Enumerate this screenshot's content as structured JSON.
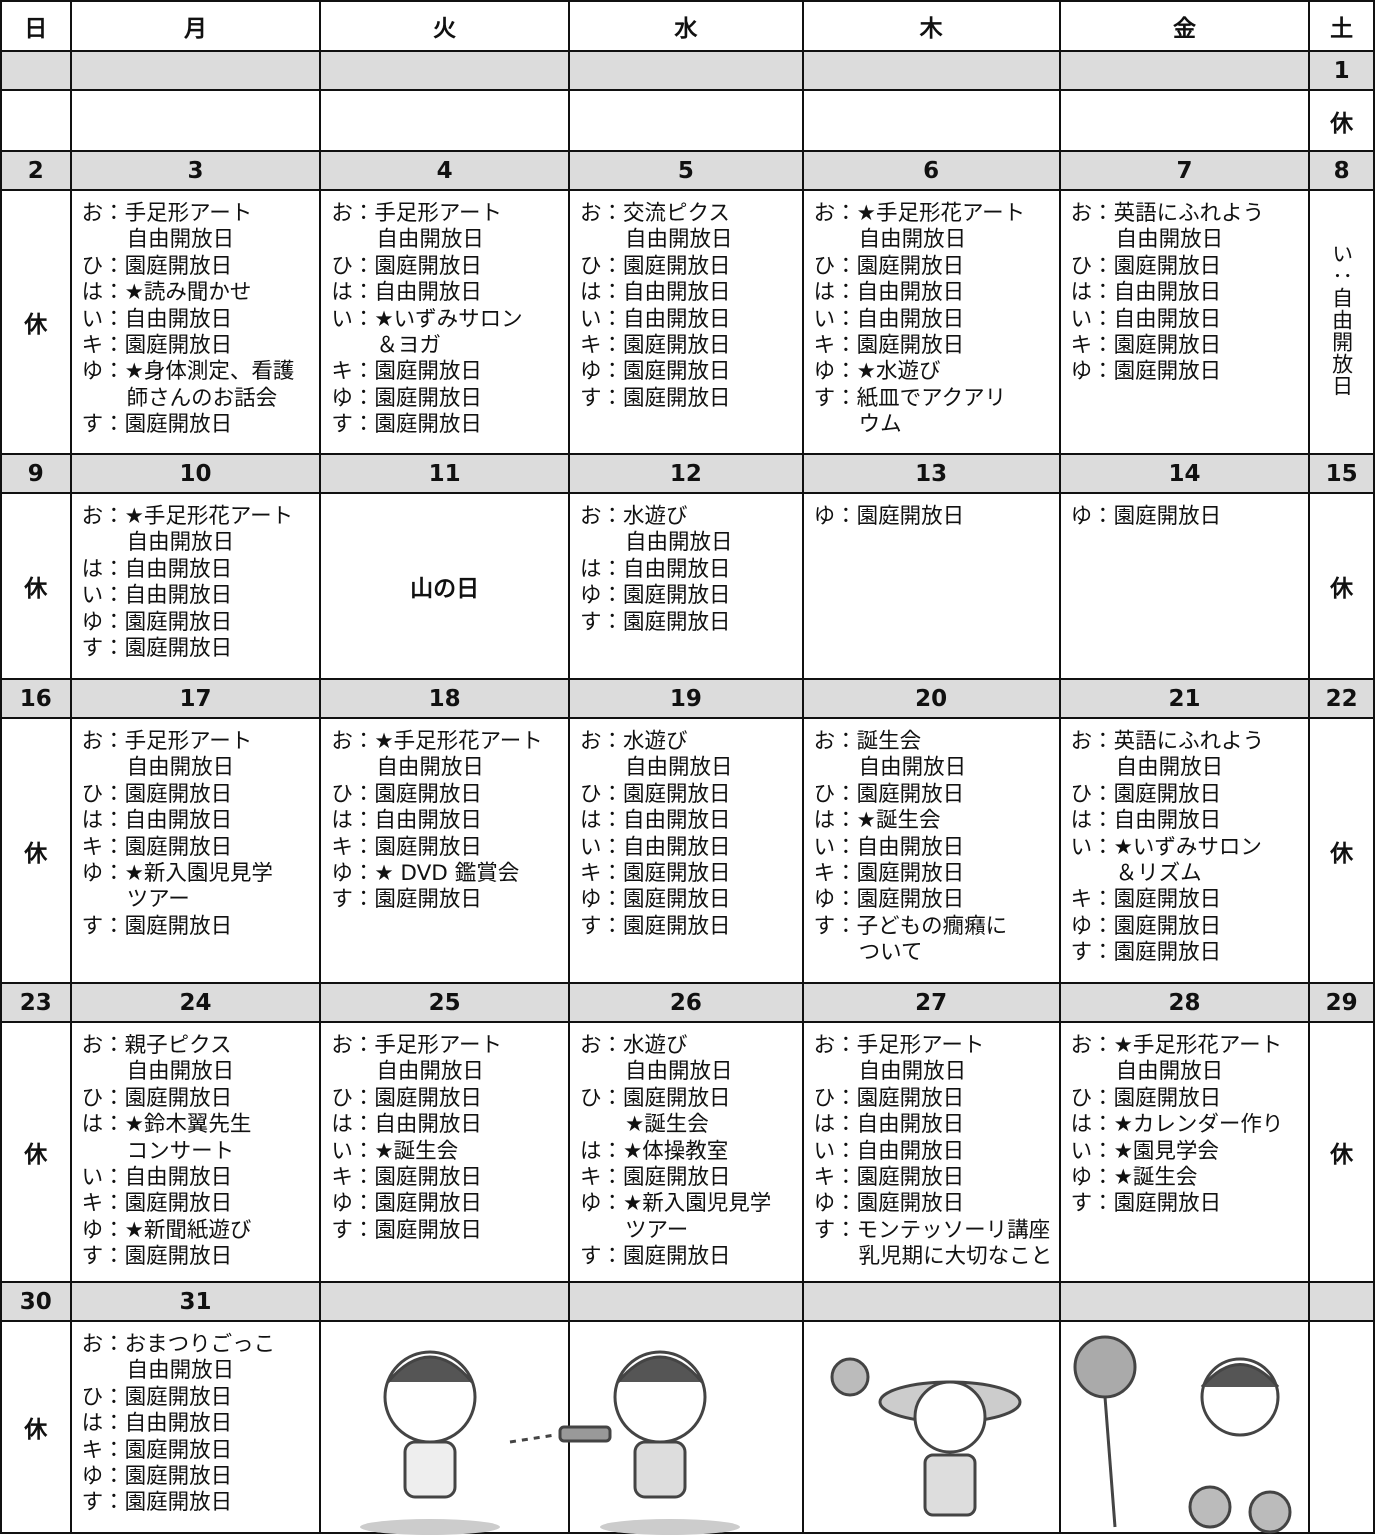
{
  "headers": [
    "日",
    "月",
    "火",
    "水",
    "木",
    "金",
    "土"
  ],
  "weeks": [
    {
      "dates": [
        null,
        null,
        null,
        null,
        null,
        null,
        "1"
      ],
      "cells": [
        [],
        [],
        [],
        [],
        [],
        [],
        [
          "休"
        ]
      ]
    },
    {
      "dates": [
        "2",
        "3",
        "4",
        "5",
        "6",
        "7",
        "8"
      ],
      "cells": [
        [
          "休"
        ],
        [
          "お：手足形アート",
          "自由開放日",
          "ひ：園庭開放日",
          "は：★読み聞かせ",
          "い：自由開放日",
          "キ：園庭開放日",
          "ゆ：★身体測定、看護",
          "師さんのお話会",
          "す：園庭開放日"
        ],
        [
          "お：手足形アート",
          "自由開放日",
          "ひ：園庭開放日",
          "は：自由開放日",
          "い：★いずみサロン",
          "＆ヨガ",
          "キ：園庭開放日",
          "ゆ：園庭開放日",
          "す：園庭開放日"
        ],
        [
          "お：交流ピクス",
          "自由開放日",
          "ひ：園庭開放日",
          "は：自由開放日",
          "い：自由開放日",
          "キ：園庭開放日",
          "ゆ：園庭開放日",
          "す：園庭開放日"
        ],
        [
          "お：★手足形花アート",
          "自由開放日",
          "ひ：園庭開放日",
          "は：自由開放日",
          "い：自由開放日",
          "キ：園庭開放日",
          "ゆ：★水遊び",
          "す：紙皿でアクアリ",
          "ウム"
        ],
        [
          "お：英語にふれよう",
          "自由開放日",
          "ひ：園庭開放日",
          "は：自由開放日",
          "い：自由開放日",
          "キ：園庭開放日",
          "ゆ：園庭開放日"
        ],
        [
          "い：自由開放日"
        ]
      ]
    },
    {
      "dates": [
        "9",
        "10",
        "11",
        "12",
        "13",
        "14",
        "15"
      ],
      "cells": [
        [
          "休"
        ],
        [
          "お：★手足形花アート",
          "自由開放日",
          "は：自由開放日",
          "い：自由開放日",
          "ゆ：園庭開放日",
          "す：園庭開放日"
        ],
        [
          "山の日"
        ],
        [
          "お：水遊び",
          "自由開放日",
          "は：自由開放日",
          "ゆ：園庭開放日",
          "す：園庭開放日"
        ],
        [
          "ゆ：園庭開放日"
        ],
        [
          "ゆ：園庭開放日"
        ],
        [
          "休"
        ]
      ]
    },
    {
      "dates": [
        "16",
        "17",
        "18",
        "19",
        "20",
        "21",
        "22"
      ],
      "cells": [
        [
          "休"
        ],
        [
          "お：手足形アート",
          "自由開放日",
          "ひ：園庭開放日",
          "は：自由開放日",
          "キ：園庭開放日",
          "ゆ：★新入園児見学",
          "ツアー",
          "す：園庭開放日"
        ],
        [
          "お：★手足形花アート",
          "自由開放日",
          "ひ：園庭開放日",
          "は：自由開放日",
          "キ：園庭開放日",
          "ゆ：★ DVD 鑑賞会",
          "す：園庭開放日"
        ],
        [
          "お：水遊び",
          "自由開放日",
          "ひ：園庭開放日",
          "は：自由開放日",
          "い：自由開放日",
          "キ：園庭開放日",
          "ゆ：園庭開放日",
          "す：園庭開放日"
        ],
        [
          "お：誕生会",
          "自由開放日",
          "ひ：園庭開放日",
          "は：★誕生会",
          "い：自由開放日",
          "キ：園庭開放日",
          "ゆ：園庭開放日",
          "す：子どもの癇癪に",
          "ついて"
        ],
        [
          "お：英語にふれよう",
          "自由開放日",
          "ひ：園庭開放日",
          "は：自由開放日",
          "い：★いずみサロン",
          "＆リズム",
          "キ：園庭開放日",
          "ゆ：園庭開放日",
          "す：園庭開放日"
        ],
        [
          "休"
        ]
      ]
    },
    {
      "dates": [
        "23",
        "24",
        "25",
        "26",
        "27",
        "28",
        "29"
      ],
      "cells": [
        [
          "休"
        ],
        [
          "お：親子ピクス",
          "自由開放日",
          "ひ：園庭開放日",
          "は：★鈴木翼先生",
          "コンサート",
          "い：自由開放日",
          "キ：園庭開放日",
          "ゆ：★新聞紙遊び",
          "す：園庭開放日"
        ],
        [
          "お：手足形アート",
          "自由開放日",
          "ひ：園庭開放日",
          "は：自由開放日",
          "い：★誕生会",
          "キ：園庭開放日",
          "ゆ：園庭開放日",
          "す：園庭開放日"
        ],
        [
          "お：水遊び",
          "自由開放日",
          "ひ：園庭開放日",
          "★誕生会",
          "は：★体操教室",
          "キ：園庭開放日",
          "ゆ：★新入園児見学",
          "ツアー",
          "す：園庭開放日"
        ],
        [
          "お：手足形アート",
          "自由開放日",
          "ひ：園庭開放日",
          "は：自由開放日",
          "い：自由開放日",
          "キ：園庭開放日",
          "ゆ：園庭開放日",
          "す：モンテッソーリ講座",
          "乳児期に大切なこと"
        ],
        [
          "お：★手足形花アート",
          "自由開放日",
          "ひ：園庭開放日",
          "は：★カレンダー作り",
          "い：★園見学会",
          "ゆ：★誕生会",
          "す：園庭開放日"
        ],
        [
          "休"
        ]
      ]
    },
    {
      "dates": [
        "30",
        "31",
        null,
        null,
        null,
        null,
        null
      ],
      "cells": [
        [
          "休"
        ],
        [
          "お：おまつりごっこ",
          "自由開放日",
          "ひ：園庭開放日",
          "は：自由開放日",
          "キ：園庭開放日",
          "ゆ：園庭開放日",
          "す：園庭開放日"
        ],
        [],
        [],
        [],
        [],
        []
      ]
    }
  ]
}
